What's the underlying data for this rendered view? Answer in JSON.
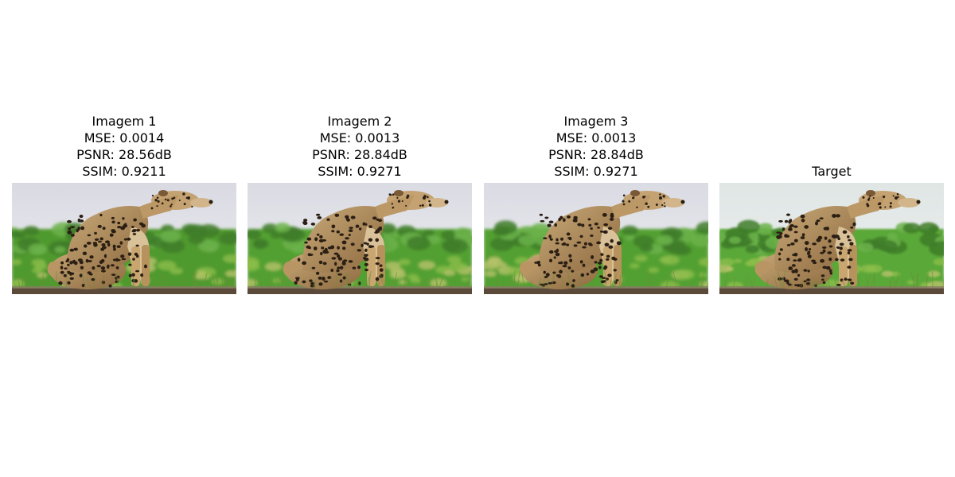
{
  "panels": [
    {
      "lines": [
        "Imagem 1",
        "MSE: 0.0014",
        "PSNR: 28.56dB",
        "SSIM: 0.9211"
      ],
      "tone": "degraded",
      "sky": "#d9d9e2",
      "grass": "#4f9a2f"
    },
    {
      "lines": [
        "Imagem 2",
        "MSE: 0.0013",
        "PSNR: 28.84dB",
        "SSIM: 0.9271"
      ],
      "tone": "degraded",
      "sky": "#dadbe3",
      "grass": "#52a032"
    },
    {
      "lines": [
        "Imagem 3",
        "MSE: 0.0013",
        "PSNR: 28.84dB",
        "SSIM: 0.9271"
      ],
      "tone": "degraded",
      "sky": "#dadbe3",
      "grass": "#52a032"
    },
    {
      "lines": [
        "Target"
      ],
      "tone": "target",
      "sky": "#dfe6e4",
      "grass": "#5aa838"
    }
  ],
  "subject_icon": "cheetah-photo"
}
